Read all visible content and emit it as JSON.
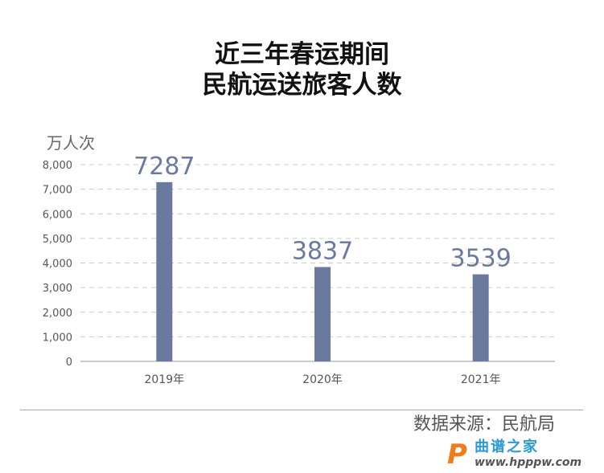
{
  "title_lines": [
    "近三年春运期间",
    "民航运送旅客人数"
  ],
  "chart_data": {
    "type": "bar",
    "title": "近三年春运期间 民航运送旅客人数",
    "ylabel": "万人次",
    "xlabel": "",
    "categories": [
      "2019年",
      "2020年",
      "2021年"
    ],
    "values": [
      7287,
      3837,
      3539
    ],
    "data_labels": [
      "7287",
      "3837",
      "3539"
    ],
    "ylim": [
      0,
      8000
    ],
    "yticks": [
      0,
      1000,
      2000,
      3000,
      4000,
      5000,
      6000,
      7000,
      8000
    ],
    "ytick_labels": [
      "0",
      "1,000",
      "2,000",
      "3,000",
      "4,000",
      "5,000",
      "6,000",
      "7,000",
      "8,000"
    ],
    "grid": true,
    "bar_color": "#6a7a9f",
    "label_color": "#6a7a9f"
  },
  "source": "数据来源：民航局",
  "watermark": {
    "text": "曲谱之家",
    "url": "www.hpppw.com"
  }
}
